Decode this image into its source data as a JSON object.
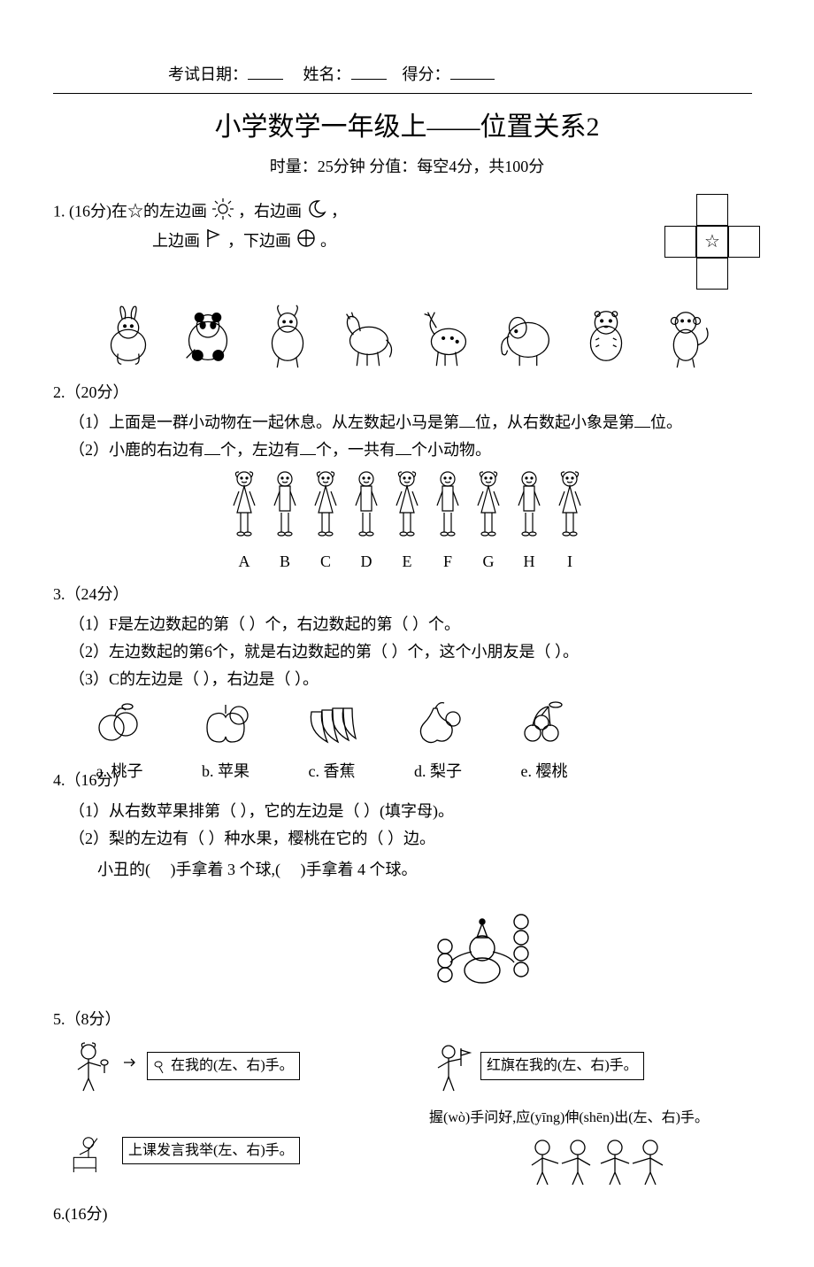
{
  "header": {
    "date_label": "考试日期：",
    "name_label": "姓名：",
    "score_label": "得分："
  },
  "title": "小学数学一年级上——位置关系2",
  "subtitle": "时量：25分钟  分值：每空4分，共100分",
  "q1": {
    "label": "1.  (16分)在☆的左边画",
    "mid1": "，右边画",
    "mid2": "，",
    "line2a": "上边画",
    "line2b": "，下边画",
    "line2c": "。",
    "star": "☆"
  },
  "q2": {
    "label": "2.（20分）",
    "s1": "（1）上面是一群小动物在一起休息。从左数起小马是第",
    "s1b": "位，从右数起小象是第",
    "s1c": "位。",
    "s2": "（2）小鹿的右边有",
    "s2b": "个，左边有",
    "s2c": "个，一共有",
    "s2d": "个小动物。",
    "animals": [
      "rabbit",
      "panda",
      "goat",
      "horse",
      "deer",
      "elephant",
      "tiger",
      "monkey"
    ]
  },
  "q3": {
    "label": "3.（24分）",
    "s1": "（1）F是左边数起的第（  ）个，右边数起的第（   ）个。",
    "s2": "（2）左边数起的第6个，就是右边数起的第（   ）个，这个小朋友是（    ）。",
    "s3": "（3）C的左边是（   ），右边是（   ）。",
    "kids": [
      "A",
      "B",
      "C",
      "D",
      "E",
      "F",
      "G",
      "H",
      "I"
    ]
  },
  "q4": {
    "label": "4.（16分）",
    "fruits": [
      {
        "key": "a",
        "name": "桃子"
      },
      {
        "key": "b",
        "name": "苹果"
      },
      {
        "key": "c",
        "name": "香蕉"
      },
      {
        "key": "d",
        "name": "梨子"
      },
      {
        "key": "e",
        "name": "樱桃"
      }
    ],
    "s1": "（1）从右数苹果排第（   ），它的左边是（     ）(填字母)。",
    "s2": "（2）梨的左边有（   ）种水果，樱桃在它的（   ）边。"
  },
  "q5": {
    "label": "5.（8分）",
    "clown_a": "小丑的(",
    "clown_b": ")手拿着 3 个球,(",
    "clown_c": ")手拿着 4 个球。"
  },
  "q6": {
    "label": "6.(16分)",
    "spoon": "在我的(左、右)手。",
    "flag": "红旗在我的(左、右)手。",
    "raise": "上课发言我举(左、右)手。",
    "shake": "握(wò)手问好,应(yīng)伸(shēn)出(左、右)手。"
  },
  "colors": {
    "ink": "#000000",
    "bg": "#ffffff"
  }
}
